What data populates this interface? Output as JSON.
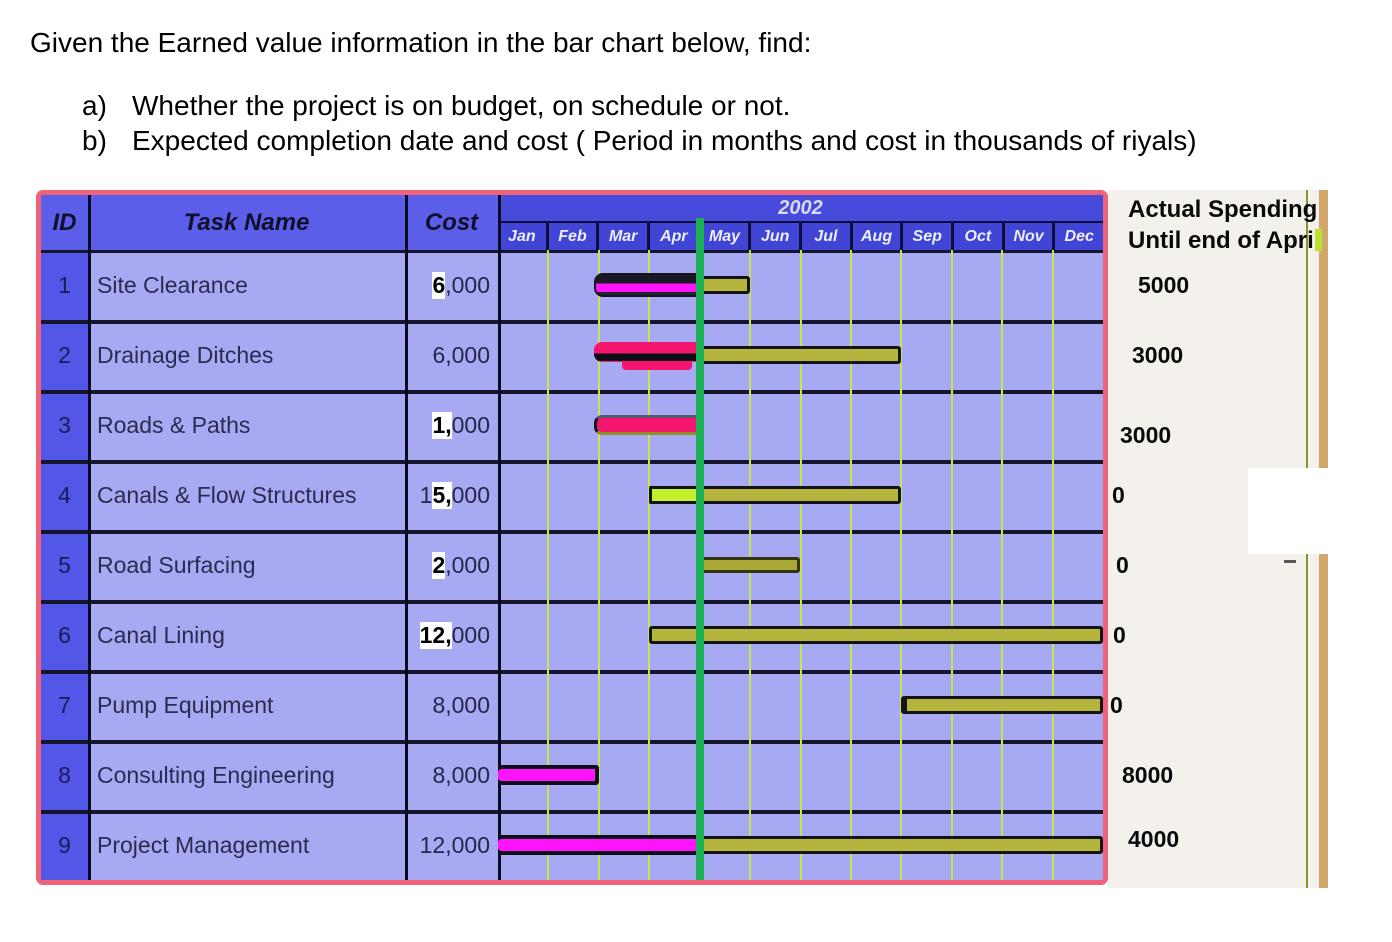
{
  "question": {
    "title": "Given the Earned value information in the bar chart below, find:",
    "items": [
      {
        "marker": "a)",
        "text": "Whether the project is on budget, on schedule or not."
      },
      {
        "marker": "b)",
        "text": "Expected completion date and cost ( Period in months and cost in thousands of riyals)"
      }
    ]
  },
  "chart_data": {
    "type": "gantt",
    "title_year": "2002",
    "columns": {
      "id": "ID",
      "task": "Task Name",
      "cost": "Cost"
    },
    "months": [
      "Jan",
      "Feb",
      "Mar",
      "Apr",
      "May",
      "Jun",
      "Jul",
      "Aug",
      "Sep",
      "Oct",
      "Nov",
      "Dec"
    ],
    "status_line_month_index": 4,
    "side_panel": {
      "header_line1": "Actual Spending",
      "header_line2": "Until end of Apri"
    },
    "tasks": [
      {
        "id": "1",
        "name": "Site Clearance",
        "cost": "6,000",
        "cost_pre": "",
        "cost_hl": "6",
        "cost_post": ",000",
        "actual_spending": "5000",
        "segments": [
          {
            "from": 2,
            "to": 4,
            "style": "magenta-heavy"
          },
          {
            "from": 4,
            "to": 5,
            "style": "olive"
          }
        ]
      },
      {
        "id": "2",
        "name": "Drainage Ditches",
        "cost": "6,000",
        "cost_pre": "6,000",
        "cost_hl": "",
        "cost_post": "",
        "actual_spending": "3000",
        "segments": [
          {
            "from": 2,
            "to": 4,
            "style": "pink-main"
          },
          {
            "from": 2.45,
            "to": 3.85,
            "style": "pink-under"
          },
          {
            "from": 4,
            "to": 8,
            "style": "olive"
          }
        ]
      },
      {
        "id": "3",
        "name": "Roads & Paths",
        "cost": "1,000",
        "cost_pre": "",
        "cost_hl": "1,",
        "cost_post": "000",
        "actual_spending": "3000",
        "segments": [
          {
            "from": 2,
            "to": 4,
            "style": "pink-flat"
          }
        ]
      },
      {
        "id": "4",
        "name": "Canals & Flow Structures",
        "cost": "15,000",
        "cost_pre": "1",
        "cost_hl": "5,",
        "cost_post": "000",
        "actual_spending": "0",
        "segments": [
          {
            "from": 3,
            "to": 4,
            "style": "chartreuse"
          },
          {
            "from": 4,
            "to": 8,
            "style": "olive"
          }
        ]
      },
      {
        "id": "5",
        "name": "Road Surfacing",
        "cost": "2,000",
        "cost_pre": "",
        "cost_hl": "2",
        "cost_post": ",000",
        "actual_spending": "0",
        "segments": [
          {
            "from": 4,
            "to": 6,
            "style": "olive-dark"
          }
        ]
      },
      {
        "id": "6",
        "name": "Canal Lining",
        "cost": "12,000",
        "cost_pre": "",
        "cost_hl": "12,",
        "cost_post": "000",
        "actual_spending": "0",
        "segments": [
          {
            "from": 3,
            "to": 12,
            "style": "olive"
          }
        ]
      },
      {
        "id": "7",
        "name": "Pump Equipment",
        "cost": "8,000",
        "cost_pre": "8,000",
        "cost_hl": "",
        "cost_post": "",
        "actual_spending": "0",
        "segments": [
          {
            "from": 8,
            "to": 12,
            "style": "olive-cap"
          }
        ]
      },
      {
        "id": "8",
        "name": "Consulting Engineering",
        "cost": "8,000",
        "cost_pre": "8,000",
        "cost_hl": "",
        "cost_post": "",
        "actual_spending": "8000",
        "segments": [
          {
            "from": 0,
            "to": 2,
            "style": "magenta"
          }
        ]
      },
      {
        "id": "9",
        "name": "Project Management",
        "cost": "12,000",
        "cost_pre": "12,000",
        "cost_hl": "",
        "cost_post": "",
        "actual_spending": "4000",
        "segments": [
          {
            "from": 0,
            "to": 4,
            "style": "magenta"
          },
          {
            "from": 4,
            "to": 12,
            "style": "olive"
          }
        ]
      }
    ]
  },
  "colors": {
    "magenta_bar": "#ff14ff",
    "deep_pink_bar": "#f4156f",
    "olive_bar": "#b5b43d",
    "chartreuse_bar": "#c3ef2d",
    "status_line_green": "#1cb155",
    "row_background": "#a7aaf2",
    "month_header_blue": "#4145d6",
    "id_column_blue": "#5257e8",
    "table_border_pink": "#f0617a",
    "gridline_yellow_green": "#c8e550",
    "panel_background": "#f4f1ec",
    "tan_edge_line": "#d2a76c",
    "olive_edge_line": "#7e982e"
  }
}
